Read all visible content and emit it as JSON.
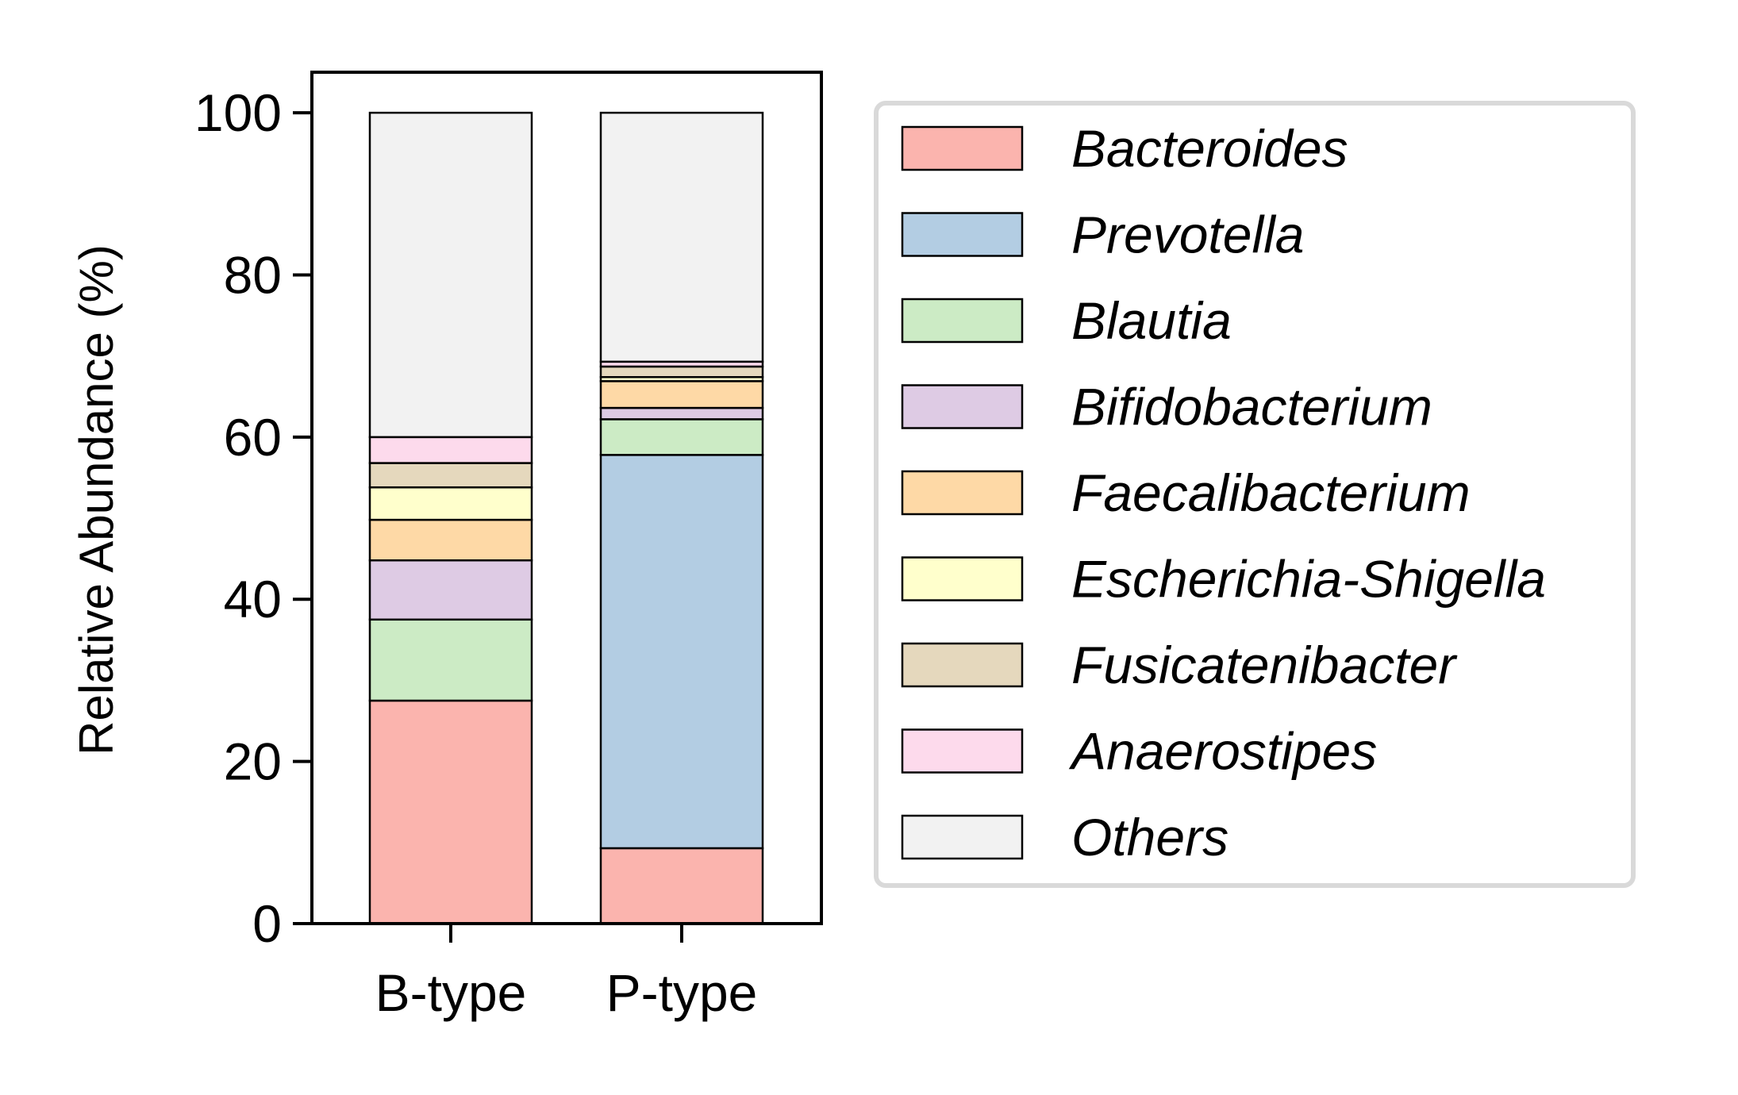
{
  "chart_data": {
    "type": "bar",
    "stacked": true,
    "categories": [
      "B-type",
      "P-type"
    ],
    "ylabel": "Relative Abundance (%)",
    "xlabel": "",
    "ylim": [
      0,
      105
    ],
    "yticks": [
      0,
      20,
      40,
      60,
      80,
      100
    ],
    "grid": false,
    "legend_position": "right",
    "series": [
      {
        "name": "Bacteroides",
        "color": "#fbb4ae",
        "values": [
          27.5,
          9.3
        ]
      },
      {
        "name": "Prevotella",
        "color": "#b3cde3",
        "values": [
          0.0,
          48.5
        ]
      },
      {
        "name": "Blautia",
        "color": "#ccebc5",
        "values": [
          10.0,
          4.4
        ]
      },
      {
        "name": "Bifidobacterium",
        "color": "#decbe4",
        "values": [
          7.3,
          1.4
        ]
      },
      {
        "name": "Faecalibacterium",
        "color": "#fed9a6",
        "values": [
          5.0,
          3.3
        ]
      },
      {
        "name": "Escherichia-Shigella",
        "color": "#ffffcc",
        "values": [
          4.0,
          0.5
        ]
      },
      {
        "name": "Fusicatenibacter",
        "color": "#e5d8bd",
        "values": [
          3.0,
          1.3
        ]
      },
      {
        "name": "Anaerostipes",
        "color": "#fddaec",
        "values": [
          3.2,
          0.6
        ]
      },
      {
        "name": "Others",
        "color": "#f2f2f2",
        "values": [
          40.0,
          30.7
        ]
      }
    ]
  }
}
